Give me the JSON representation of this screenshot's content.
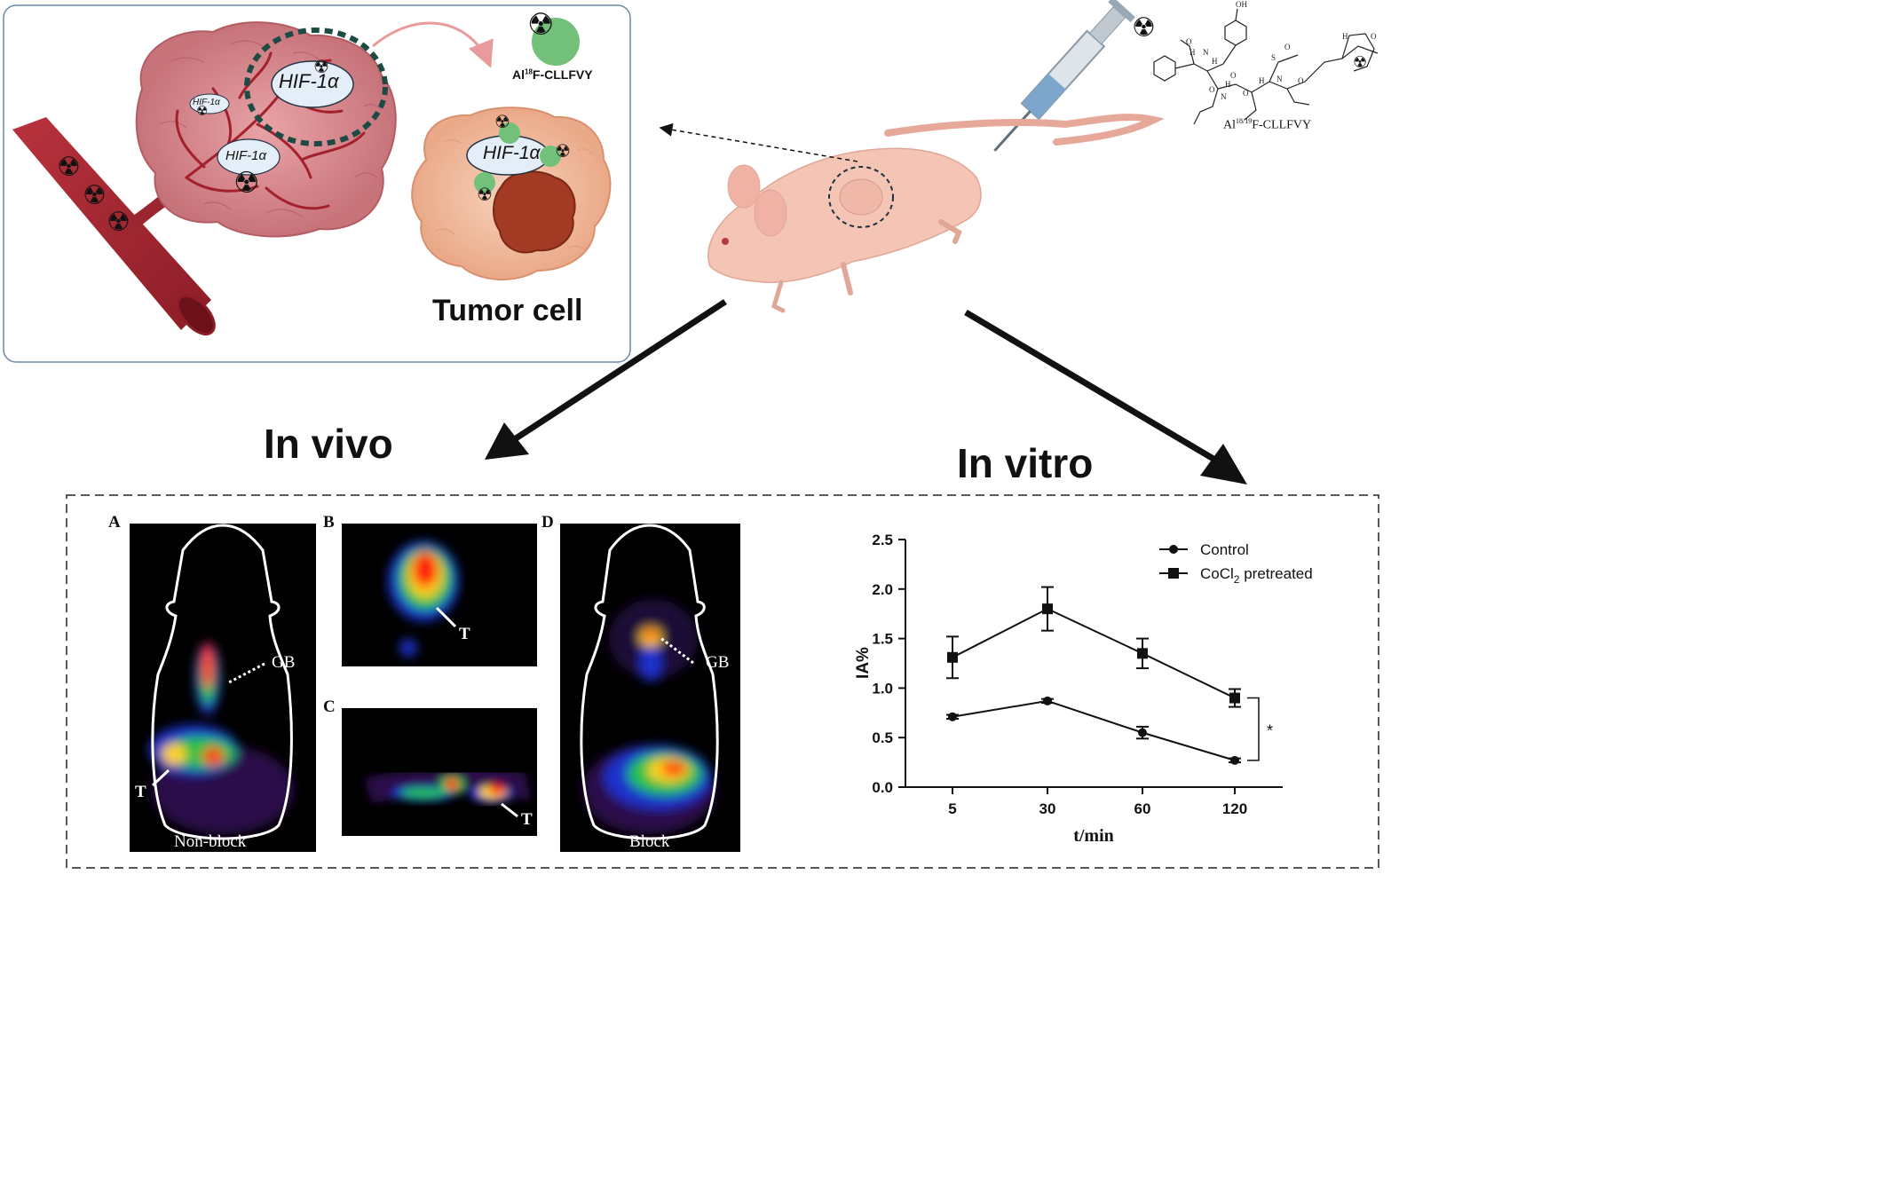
{
  "scheme": {
    "hif_big": "HIF-1α",
    "hif_small": "HIF-1α",
    "hif_mid": "HIF-1α",
    "hif_cell": "HIF-1α",
    "tracer_top_prefix": "Al",
    "tracer_top_sup": "18",
    "tracer_top_suffix": "F-CLLFVY",
    "tumor_cell": "Tumor cell",
    "tracer_chem_prefix": "Al",
    "tracer_chem_sup": "18/19",
    "tracer_chem_suffix": "F-CLLFVY",
    "chem_atoms": [
      "OH",
      "O",
      "H",
      "N",
      "H",
      "O",
      "S",
      "O",
      "O",
      "H",
      "N",
      "O",
      "H",
      "N",
      "O",
      "H",
      "O"
    ]
  },
  "sections": {
    "in_vivo": "In vivo",
    "in_vitro": "In vitro"
  },
  "pet_panels": {
    "A": {
      "letter": "A",
      "caption": "Non-block",
      "gb": "GB",
      "t": "T"
    },
    "B": {
      "letter": "B",
      "t": "T"
    },
    "C": {
      "letter": "C",
      "t": "T"
    },
    "D": {
      "letter": "D",
      "caption": "Block",
      "gb": "GB"
    }
  },
  "chart_data": {
    "type": "line",
    "x": [
      "5",
      "30",
      "60",
      "120"
    ],
    "xlabel": "t/min",
    "ylabel": "IA%",
    "ylim": [
      0.0,
      2.5
    ],
    "yticks": [
      "0.0",
      "0.5",
      "1.0",
      "1.5",
      "2.0",
      "2.5"
    ],
    "series": [
      {
        "name": "Control",
        "marker": "circle",
        "values": [
          0.71,
          0.87,
          0.55,
          0.27
        ],
        "errors": [
          0.02,
          0.02,
          0.06,
          0.02
        ]
      },
      {
        "name": "CoCl2 pretreated",
        "name_prefix": "CoCl",
        "name_sub": "2",
        "name_suffix": " pretreated",
        "marker": "square",
        "values": [
          1.31,
          1.8,
          1.35,
          0.9
        ],
        "errors": [
          0.21,
          0.22,
          0.15,
          0.09
        ]
      }
    ],
    "significance": "*",
    "legend": "top-right",
    "grid": false
  },
  "colors": {
    "vessel": "#9e2530",
    "tumor": "#cf7f82",
    "cell": "#f3c2a4",
    "nucleus": "#a33a24",
    "ligand": "#73c07b",
    "hif": "#e3eef8",
    "mouse": "#f4c4b4",
    "box_border": "#6b87a8",
    "dashed_ring": "#1d4a44"
  }
}
